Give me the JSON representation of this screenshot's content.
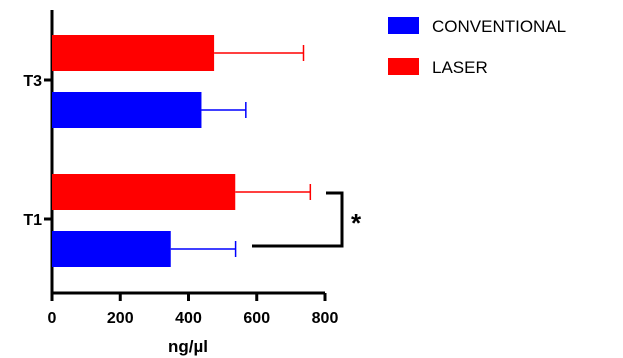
{
  "chart_data": {
    "type": "bar",
    "orientation": "horizontal",
    "categories": [
      "T1",
      "T3"
    ],
    "series": [
      {
        "name": "CONVENTIONAL",
        "color": "#0000ff",
        "values": [
          348,
          438
        ],
        "error": [
          190,
          130
        ]
      },
      {
        "name": "LASER",
        "color": "#ff0000",
        "values": [
          537,
          475
        ],
        "error": [
          220,
          262
        ]
      }
    ],
    "xlabel": "ng/µl",
    "ylabel": "",
    "xlim": [
      0,
      800
    ],
    "xticks": [
      "0",
      "200",
      "400",
      "600",
      "800"
    ],
    "legend_position": "top-right",
    "grid": false,
    "annotations": [
      {
        "text": "*",
        "between": "T1 CONVENTIONAL and T1 LASER"
      }
    ]
  }
}
